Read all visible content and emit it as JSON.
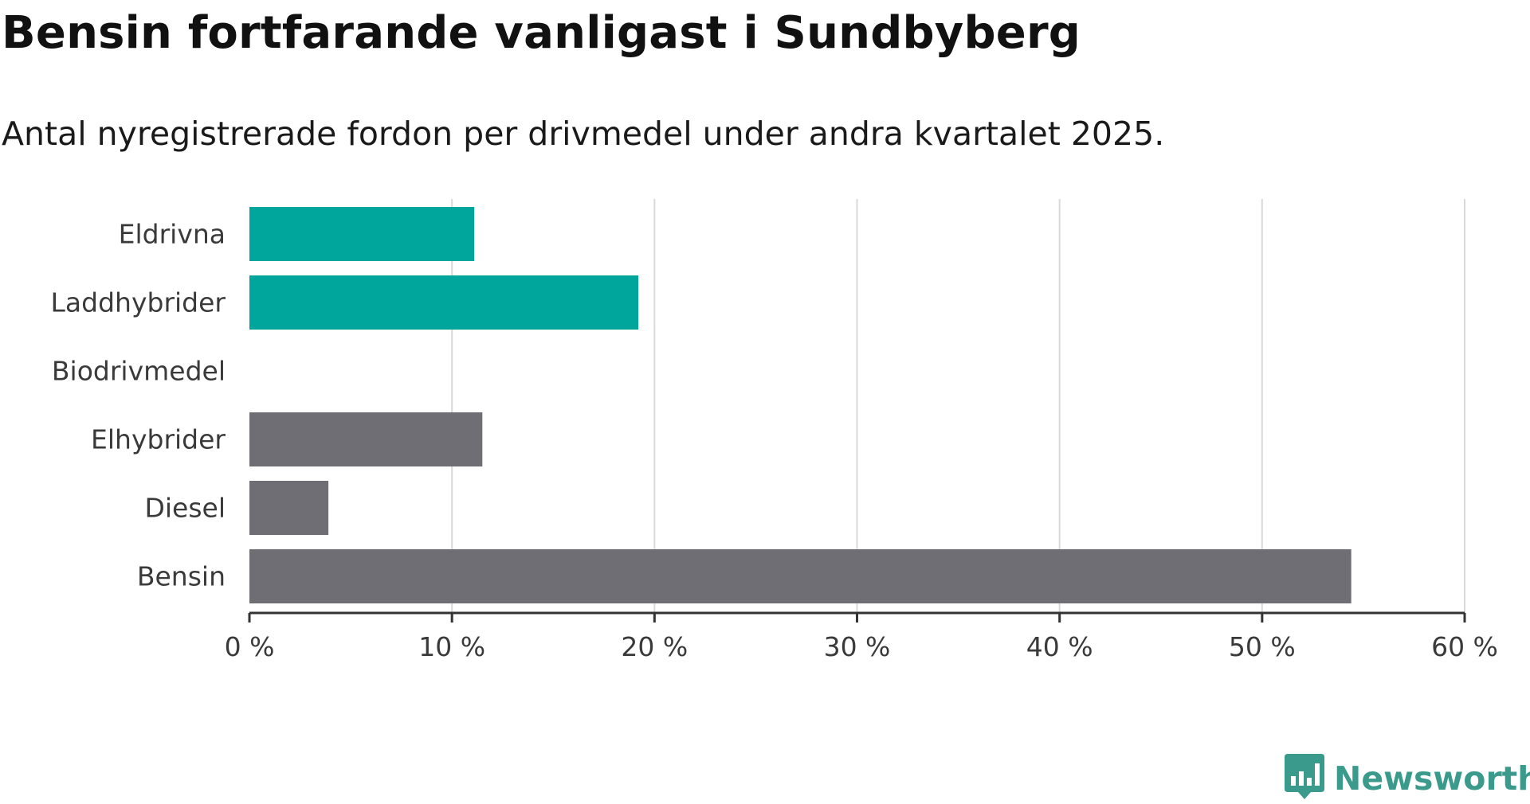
{
  "title": "Bensin fortfarande vanligast i Sundbyberg",
  "subtitle": "Antal nyregistrerade fordon per drivmedel under andra kvartalet 2025.",
  "brand": {
    "name": "Newsworthy",
    "logo_icon": "newsworthy-bar-chart-logo-icon"
  },
  "colors": {
    "highlight": "#00a59b",
    "neutral": "#6e6e74",
    "grid": "#d9d9d9",
    "axis": "#333333",
    "brand": "#3a9a8c"
  },
  "chart_data": {
    "type": "bar",
    "orientation": "horizontal",
    "title": "Bensin fortfarande vanligast i Sundbyberg",
    "subtitle": "Antal nyregistrerade fordon per drivmedel under andra kvartalet 2025.",
    "xlabel": "",
    "ylabel": "",
    "unit": "%",
    "categories": [
      "Eldrivna",
      "Laddhybrider",
      "Biodrivmedel",
      "Elhybrider",
      "Diesel",
      "Bensin"
    ],
    "values": [
      11.1,
      19.2,
      0,
      11.5,
      3.9,
      54.4
    ],
    "highlighted": [
      true,
      true,
      false,
      false,
      false,
      false
    ],
    "xlim": [
      0,
      60
    ],
    "x_ticks": [
      0,
      10,
      20,
      30,
      40,
      50,
      60
    ],
    "x_tick_labels": [
      "0 %",
      "10 %",
      "20 %",
      "30 %",
      "40 %",
      "50 %",
      "60 %"
    ],
    "grid": "vertical",
    "legend": "none"
  }
}
